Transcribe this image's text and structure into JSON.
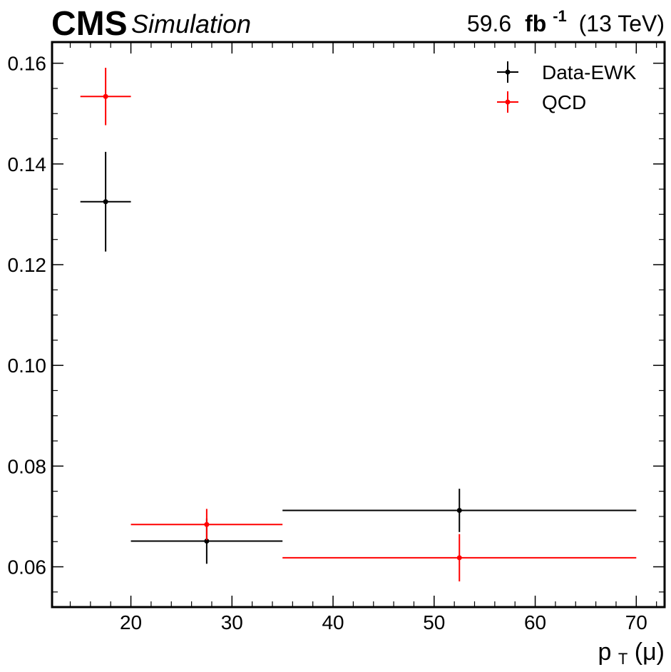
{
  "header": {
    "experiment": "CMS",
    "tag": "Simulation",
    "lumi_value": "59.6",
    "lumi_unit": "fb",
    "lumi_exp": "-1",
    "energy": "(13 TeV)"
  },
  "chart_data": {
    "type": "scatter",
    "title": "",
    "xlabel_main": "p",
    "xlabel_sub": "T",
    "xlabel_tail": "(μ)",
    "ylabel": "",
    "xlim": [
      12.2,
      72.8
    ],
    "ylim": [
      0.052,
      0.1642
    ],
    "x_ticks": [
      20,
      30,
      40,
      50,
      60,
      70
    ],
    "x_tick_labels": [
      "20",
      "30",
      "40",
      "50",
      "60",
      "70"
    ],
    "y_ticks": [
      0.06,
      0.08,
      0.1,
      0.12,
      0.14,
      0.16
    ],
    "y_tick_labels": [
      "0.06",
      "0.08",
      "0.10",
      "0.12",
      "0.14",
      "0.16"
    ],
    "grid": false,
    "legend_position": "top-right",
    "series": [
      {
        "name": "Data-EWK",
        "color": "#000000",
        "points": [
          {
            "x": 17.5,
            "xlow": 15,
            "xhigh": 20,
            "y": 0.1325,
            "err": 0.0099
          },
          {
            "x": 27.5,
            "xlow": 20,
            "xhigh": 35,
            "y": 0.0651,
            "err": 0.0045
          },
          {
            "x": 52.5,
            "xlow": 35,
            "xhigh": 70,
            "y": 0.0712,
            "err": 0.0043
          }
        ]
      },
      {
        "name": "QCD",
        "color": "#ff0000",
        "points": [
          {
            "x": 17.5,
            "xlow": 15,
            "xhigh": 20,
            "y": 0.1534,
            "err": 0.0057
          },
          {
            "x": 27.5,
            "xlow": 20,
            "xhigh": 35,
            "y": 0.0684,
            "err": 0.0031
          },
          {
            "x": 52.5,
            "xlow": 35,
            "xhigh": 70,
            "y": 0.0618,
            "err": 0.0047
          }
        ]
      }
    ]
  }
}
